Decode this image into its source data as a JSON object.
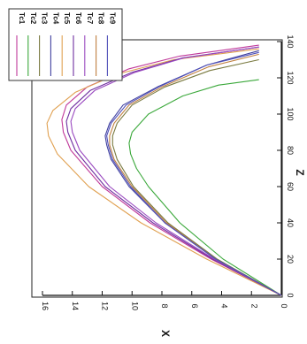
{
  "chart_data": {
    "type": "line",
    "orientation": "rotated-90",
    "xlabel": "Z",
    "ylabel": "X",
    "xlim": [
      0,
      140
    ],
    "ylim": [
      0,
      16
    ],
    "x_ticks": [
      0,
      20,
      40,
      60,
      80,
      100,
      120,
      140
    ],
    "y_ticks": [
      0,
      2,
      4,
      6,
      8,
      10,
      12,
      14,
      16
    ],
    "grid": false,
    "legend_position": "top-left",
    "series": [
      {
        "name": "Tc1",
        "color": "#c0399a",
        "x": [
          0,
          20,
          40,
          60,
          80,
          90,
          97,
          105,
          115,
          125,
          132,
          138
        ],
        "y": [
          0,
          4.7,
          8.8,
          12.0,
          14.1,
          14.6,
          14.7,
          14.4,
          13.0,
          10.2,
          6.8,
          1.5
        ]
      },
      {
        "name": "Tc2",
        "color": "#3aa83a",
        "x": [
          0,
          20,
          40,
          60,
          70,
          78,
          84,
          90,
          100,
          110,
          116,
          119
        ],
        "y": [
          0,
          3.9,
          6.8,
          8.9,
          9.7,
          10.1,
          10.2,
          10.0,
          8.9,
          6.6,
          4.2,
          1.5
        ]
      },
      {
        "name": "Tc3",
        "color": "#7a7a40",
        "x": [
          0,
          20,
          40,
          60,
          75,
          83,
          88,
          95,
          105,
          115,
          124,
          130
        ],
        "y": [
          0,
          4.3,
          7.6,
          9.9,
          11.0,
          11.3,
          11.3,
          11.0,
          10.0,
          7.8,
          4.8,
          1.5
        ]
      },
      {
        "name": "Tc4",
        "color": "#4040a0",
        "x": [
          0,
          20,
          40,
          60,
          75,
          83,
          88,
          95,
          105,
          115,
          127,
          135
        ],
        "y": [
          0,
          4.4,
          7.8,
          10.2,
          11.4,
          11.7,
          11.8,
          11.5,
          10.6,
          8.3,
          5.0,
          1.5
        ]
      },
      {
        "name": "Tc5",
        "color": "#e0a050",
        "x": [
          0,
          20,
          40,
          60,
          78,
          88,
          95,
          102,
          112,
          122,
          130,
          136
        ],
        "y": [
          0,
          5.0,
          9.4,
          12.9,
          15.0,
          15.6,
          15.7,
          15.3,
          13.8,
          11.0,
          7.2,
          1.5
        ]
      },
      {
        "name": "Tc6",
        "color": "#7030a0",
        "x": [
          0,
          20,
          40,
          60,
          80,
          90,
          96,
          103,
          113,
          123,
          131,
          137
        ],
        "y": [
          0,
          4.6,
          8.6,
          11.8,
          13.8,
          14.3,
          14.4,
          14.1,
          12.8,
          10.0,
          6.6,
          1.5
        ]
      },
      {
        "name": "Tc7",
        "color": "#9a4ac0",
        "x": [
          0,
          20,
          40,
          60,
          80,
          90,
          96,
          103,
          113,
          123,
          131,
          137
        ],
        "y": [
          0,
          4.5,
          8.4,
          11.5,
          13.5,
          14.0,
          14.1,
          13.8,
          12.5,
          9.8,
          6.5,
          1.5
        ]
      },
      {
        "name": "Tc8",
        "color": "#c08040",
        "x": [
          0,
          20,
          40,
          60,
          75,
          83,
          88,
          95,
          105,
          115,
          126,
          133
        ],
        "y": [
          0,
          4.4,
          7.7,
          10.0,
          11.2,
          11.5,
          11.5,
          11.2,
          10.2,
          8.0,
          4.9,
          1.5
        ]
      },
      {
        "name": "Tc9",
        "color": "#5050b8",
        "x": [
          0,
          20,
          40,
          60,
          75,
          83,
          88,
          95,
          105,
          115,
          127,
          134
        ],
        "y": [
          0,
          4.4,
          7.8,
          10.1,
          11.3,
          11.6,
          11.7,
          11.4,
          10.4,
          8.2,
          5.0,
          1.5
        ]
      }
    ]
  }
}
